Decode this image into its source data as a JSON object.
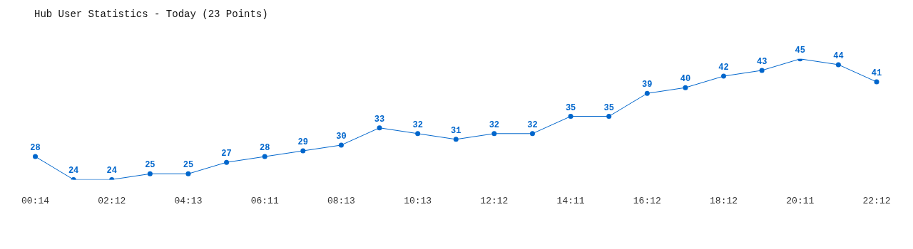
{
  "chart_data": {
    "type": "line",
    "title": "Hub User Statistics - Today (23 Points)",
    "categories": [
      "00:14",
      null,
      "02:12",
      null,
      "04:13",
      null,
      "06:11",
      null,
      "08:13",
      null,
      "10:13",
      null,
      "12:12",
      null,
      "14:11",
      null,
      "16:12",
      null,
      "18:12",
      null,
      "20:11",
      null,
      "22:12"
    ],
    "values": [
      28,
      24,
      24,
      25,
      25,
      27,
      28,
      29,
      30,
      33,
      32,
      31,
      32,
      32,
      35,
      35,
      39,
      40,
      42,
      43,
      45,
      44,
      41
    ],
    "color": "#0066cc",
    "data_labels": true,
    "grid": false,
    "legend": false,
    "marker": "circle",
    "line_style": "solid"
  }
}
